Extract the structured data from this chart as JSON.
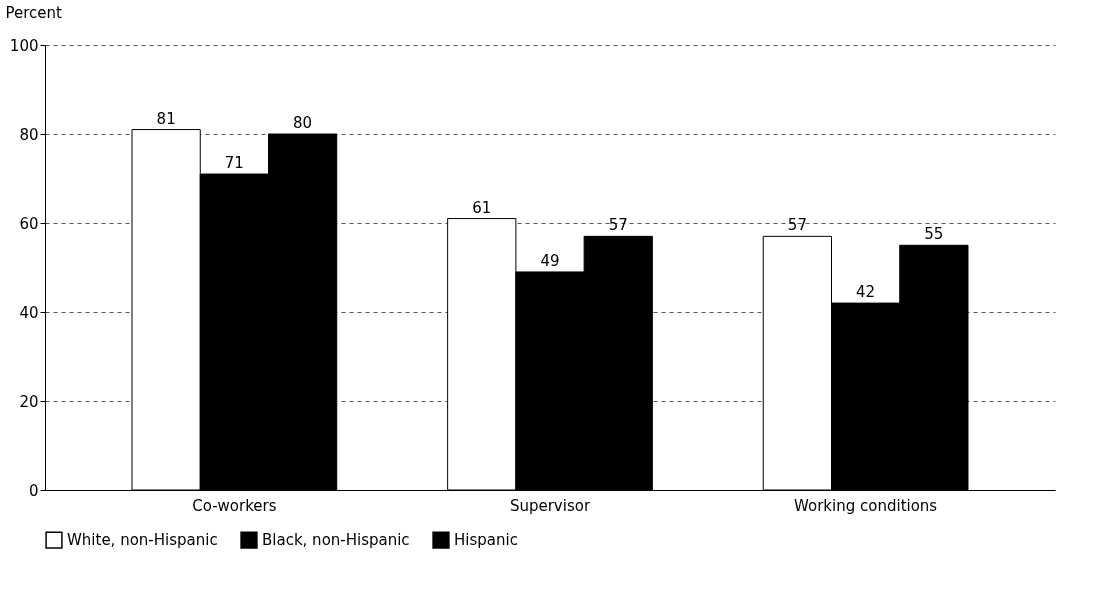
{
  "chart_data": {
    "type": "bar",
    "ylabel": "Percent",
    "categories": [
      "Co-workers",
      "Supervisor",
      "Working conditions"
    ],
    "series": [
      {
        "name": "White, non-Hispanic",
        "color": "#ffffff",
        "values": [
          81,
          61,
          57
        ]
      },
      {
        "name": "Black, non-Hispanic",
        "color": "#000000",
        "values": [
          71,
          49,
          42
        ]
      },
      {
        "name": "Hispanic",
        "color": "#000000",
        "values": [
          80,
          57,
          55
        ]
      }
    ],
    "ylim": [
      0,
      100
    ],
    "yticks": [
      0,
      20,
      40,
      60,
      80,
      100
    ],
    "grid": "y",
    "legend": "bottom",
    "data_labels": true
  }
}
